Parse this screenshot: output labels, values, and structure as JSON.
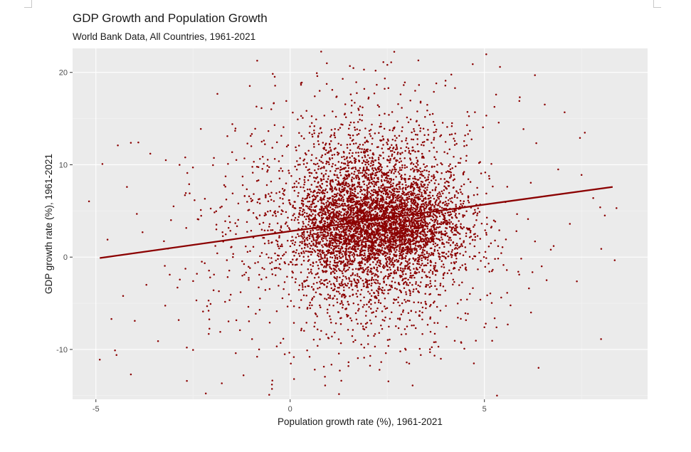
{
  "colors": {
    "panel_background": "#ebebeb",
    "major_grid": "#ffffff",
    "minor_grid": "#f4f4f4",
    "points": "#8b0000",
    "fit_line": "#8b0000"
  },
  "chart_data": {
    "type": "scatter",
    "title": "GDP Growth and Population Growth",
    "subtitle": "World Bank Data, All Countries, 1961-2021",
    "xlabel": "Population growth rate (%), 1961-2021",
    "ylabel": "GDP growth rate (%), 1961-2021",
    "xlim": [
      -5.6,
      9.2
    ],
    "ylim": [
      -15.4,
      22.6
    ],
    "x_ticks": [
      -5,
      0,
      5
    ],
    "y_ticks": [
      -10,
      0,
      10,
      20
    ],
    "x_tick_labels": [
      "-5",
      "0",
      "5"
    ],
    "y_tick_labels": [
      "-10",
      "0",
      "10",
      "20"
    ],
    "grid": true,
    "legend": "none",
    "series": [
      {
        "type": "scatter",
        "sample_points": [
          [
            -4.9,
            -11.1
          ],
          [
            -4.1,
            -12.7
          ],
          [
            -4.7,
            1.9
          ],
          [
            -4.6,
            -6.7
          ],
          [
            -4.3,
            -4.2
          ],
          [
            -4.2,
            7.6
          ],
          [
            -4.0,
            -6.9
          ],
          [
            -3.8,
            2.7
          ],
          [
            -3.7,
            -3.0
          ],
          [
            -3.6,
            11.2
          ],
          [
            -3.4,
            -9.1
          ],
          [
            -3.2,
            10.5
          ],
          [
            -3.1,
            -1.9
          ],
          [
            -3.0,
            5.5
          ],
          [
            -2.9,
            -3.3
          ],
          [
            -2.7,
            10.8
          ],
          [
            -2.6,
            7.9
          ],
          [
            -2.4,
            -1.8
          ],
          [
            -2.3,
            5.1
          ],
          [
            -2.1,
            -5.8
          ],
          [
            -1.9,
            3.0
          ],
          [
            -1.8,
            -8.1
          ],
          [
            -1.6,
            10.1
          ],
          [
            -1.4,
            -10.4
          ],
          [
            -1.2,
            -12.8
          ],
          [
            -1.1,
            12.3
          ],
          [
            -0.9,
            13.9
          ],
          [
            -0.8,
            -10.0
          ],
          [
            -0.6,
            7.8
          ],
          [
            -0.4,
            14.3
          ],
          [
            -0.3,
            -3.1
          ],
          [
            -0.1,
            16.9
          ],
          [
            0.1,
            -13.2
          ],
          [
            0.3,
            18.9
          ],
          [
            0.5,
            -10.8
          ],
          [
            0.7,
            19.6
          ],
          [
            0.9,
            -13.9
          ],
          [
            1.2,
            17.4
          ],
          [
            1.5,
            -11.8
          ],
          [
            1.9,
            20.3
          ],
          [
            2.3,
            -12.2
          ],
          [
            2.6,
            21.1
          ],
          [
            3.0,
            -11.4
          ],
          [
            3.3,
            21.3
          ],
          [
            3.6,
            -10.3
          ],
          [
            4.0,
            19.1
          ],
          [
            4.4,
            -9.2
          ],
          [
            4.7,
            20.9
          ],
          [
            5.0,
            -7.6
          ],
          [
            5.3,
            17.6
          ],
          [
            5.6,
            -7.3
          ],
          [
            5.9,
            16.9
          ],
          [
            6.2,
            -6.0
          ],
          [
            6.3,
            19.7
          ],
          [
            6.6,
            -2.5
          ],
          [
            6.9,
            9.5
          ],
          [
            7.2,
            3.6
          ],
          [
            7.5,
            8.9
          ],
          [
            7.8,
            6.4
          ],
          [
            8.1,
            4.5
          ],
          [
            8.4,
            5.3
          ]
        ]
      },
      {
        "type": "line",
        "x": [
          -4.9,
          0.0,
          8.3
        ],
        "y": [
          -0.1,
          2.8,
          7.6
        ]
      }
    ]
  }
}
